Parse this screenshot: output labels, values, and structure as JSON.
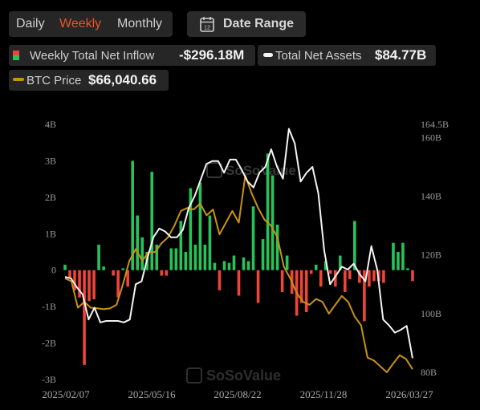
{
  "tabs": {
    "daily": "Daily",
    "weekly": "Weekly",
    "monthly": "Monthly",
    "active": "weekly"
  },
  "date_range": {
    "label": "Date Range",
    "icon": "calendar-icon",
    "icon_text": "12"
  },
  "legend": {
    "inflow": {
      "label": "Weekly Total Net Inflow",
      "value": "-$296.18M"
    },
    "assets": {
      "label": "Total Net Assets",
      "value": "$84.77B"
    },
    "btc": {
      "label": "BTC Price",
      "value": "$66,040.66"
    }
  },
  "colors": {
    "positive": "#27c25a",
    "negative": "#ef4438",
    "assets_line": "#f4f4f4",
    "btc_line": "#c9930f",
    "active_tab": "#e9542c"
  },
  "watermark": "SoSoValue",
  "chart_data": {
    "type": "bar",
    "x_tick_labels": [
      "2025/02/07",
      "2025/05/16",
      "2025/08/22",
      "2025/11/28",
      "2026/03/27"
    ],
    "y_left": {
      "unit": "B",
      "ticks": [
        "4B",
        "3B",
        "2B",
        "1B",
        "0",
        "-1B",
        "-2B",
        "-3B"
      ],
      "range": [
        -3,
        4
      ]
    },
    "y_right": {
      "ticks": [
        "164.5B",
        "160B",
        "140B",
        "120B",
        "100B",
        "80B"
      ],
      "range": [
        80,
        164.5
      ]
    },
    "series": [
      {
        "name": "Weekly Total Net Inflow",
        "type": "bar",
        "axis": "left",
        "values": [
          0.15,
          -0.2,
          -0.55,
          -0.75,
          -2.6,
          -0.85,
          -0.8,
          0.7,
          0.1,
          0,
          -0.15,
          -0.75,
          0.05,
          -0.45,
          3.0,
          1.5,
          0.9,
          0.5,
          2.7,
          0.7,
          -0.15,
          -0.15,
          0.6,
          0.6,
          1.35,
          0.5,
          2.25,
          0.7,
          2.4,
          0.7,
          1.5,
          0.2,
          -0.55,
          0.25,
          0.2,
          0.4,
          -0.7,
          0.35,
          0.25,
          1.75,
          -0.9,
          0.85,
          3.2,
          2.6,
          1.25,
          -0.6,
          0.4,
          -0.65,
          -1.25,
          -0.9,
          -1.15,
          -0.1,
          0.15,
          -0.45,
          0.25,
          -0.1,
          -0.45,
          0.4,
          -0.6,
          -0.25,
          1.35,
          -0.35,
          -1.4,
          -0.45,
          -0.3,
          -0.3,
          -0.35,
          0,
          0.75,
          0.5,
          0.75,
          0.05,
          -0.3
        ]
      },
      {
        "name": "Total Net Assets",
        "type": "line",
        "axis": "right",
        "values": [
          112.5,
          112,
          109,
          106.5,
          98,
          102,
          97,
          97.5,
          97.5,
          97.5,
          97,
          98,
          110,
          111,
          119,
          126,
          129,
          128,
          126,
          126,
          128.5,
          136,
          140,
          145.5,
          151,
          152,
          152,
          148,
          152.5,
          152.5,
          149,
          145,
          143,
          148,
          150,
          156,
          150,
          146,
          163,
          158,
          145,
          148,
          150,
          141,
          121.5,
          110,
          113,
          116,
          115,
          117,
          113.5,
          111,
          123,
          115,
          98,
          96,
          93.5,
          94.5,
          95.8,
          84.8
        ]
      },
      {
        "name": "BTC Price",
        "type": "line",
        "axis": "right",
        "values": [
          112,
          111,
          102,
          104,
          102,
          101.8,
          101.5,
          101.8,
          103,
          110,
          118,
          122,
          118,
          121,
          121,
          124,
          126,
          130,
          135,
          136,
          135.5,
          137.5,
          133.5,
          135.5,
          127,
          131,
          135,
          131,
          147,
          141,
          136,
          132,
          130,
          126,
          116,
          112,
          107,
          104,
          103,
          105,
          104,
          100,
          103,
          106,
          104,
          99,
          96,
          85,
          84,
          82,
          80,
          83,
          85.8,
          84.5,
          81
        ]
      }
    ],
    "grid": false,
    "legend_position": "top-left"
  }
}
